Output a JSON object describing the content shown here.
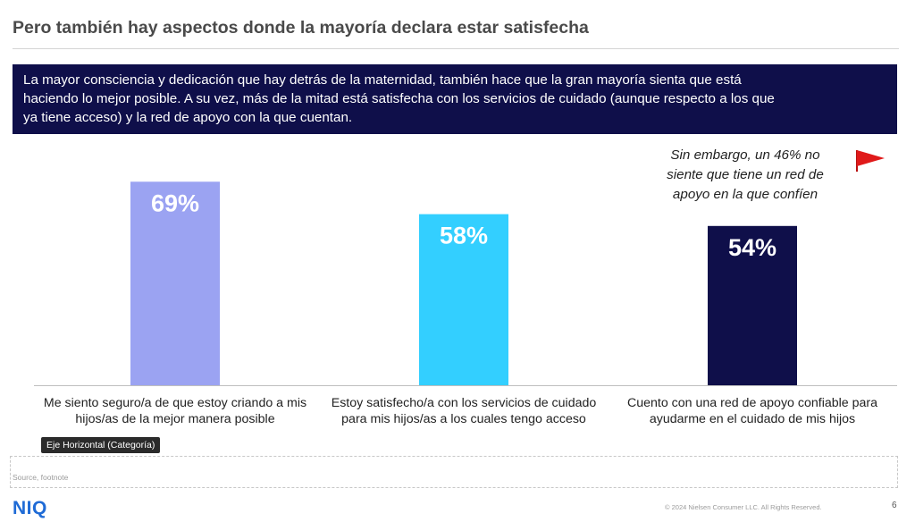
{
  "header": {
    "title": "Pero también hay aspectos donde la mayoría declara estar satisfecha"
  },
  "banner": {
    "lines": [
      "La mayor consciencia y dedicación que hay detrás de la maternidad, también hace que la gran mayoría sienta que está",
      "haciendo lo mejor posible. A su vez, más de la mitad está satisfecha con los servicios de cuidado (aunque respecto a los que",
      "ya tiene acceso) y la red de apoyo con la que cuentan."
    ]
  },
  "callout": {
    "lines": [
      "Sin embargo, un 46% no",
      "siente que tiene un red de",
      "apoyo en la que confíen"
    ]
  },
  "chart_data": {
    "type": "bar",
    "categories": [
      [
        "Me siento seguro/a de que estoy criando a mis",
        "hijos/as de la mejor manera posible"
      ],
      [
        "Estoy satisfecho/a con los servicios de cuidado",
        "para mis hijos/as a los cuales tengo acceso"
      ],
      [
        "Cuento con una red de apoyo confiable para",
        "ayudarme en el cuidado de mis hijos"
      ]
    ],
    "values": [
      69,
      58,
      54
    ],
    "data_labels": [
      "69%",
      "58%",
      "54%"
    ],
    "colors": [
      "#9ba3f2",
      "#33cfff",
      "#0f0f4a"
    ],
    "ylim": [
      0,
      100
    ],
    "grid": false,
    "legend": "none"
  },
  "axis_chip": "Eje Horizontal (Categoría)",
  "footer": {
    "source": "Source, footnote",
    "logo": "NIQ",
    "copyright": "© 2024 Nielsen Consumer LLC. All Rights Reserved.",
    "page": "6"
  }
}
